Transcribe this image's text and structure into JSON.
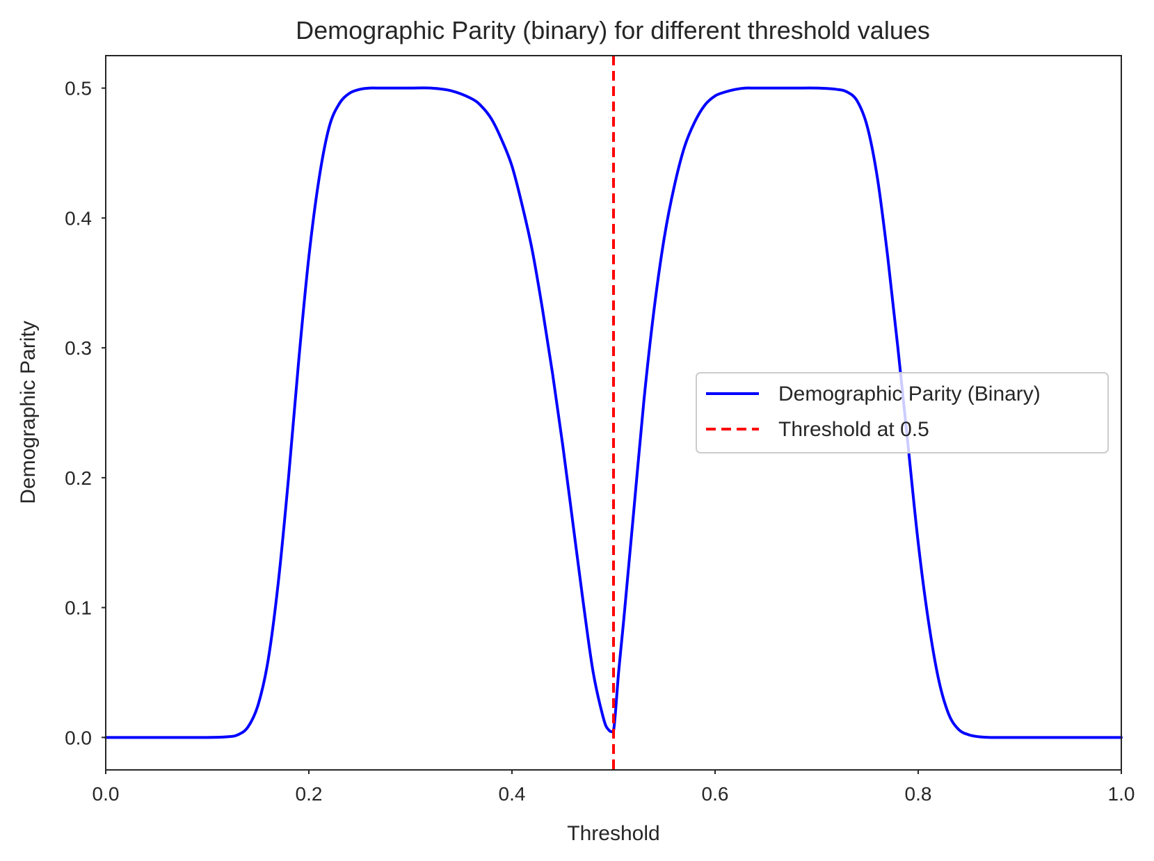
{
  "chart_data": {
    "type": "line",
    "title": "Demographic Parity (binary) for different threshold values",
    "xlabel": "Threshold",
    "ylabel": "Demographic Parity",
    "xlim": [
      0.0,
      1.0
    ],
    "ylim": [
      -0.025,
      0.525
    ],
    "xticks": [
      0.0,
      0.2,
      0.4,
      0.6,
      0.8,
      1.0
    ],
    "xtick_labels": [
      "0.0",
      "0.2",
      "0.4",
      "0.6",
      "0.8",
      "1.0"
    ],
    "yticks": [
      0.0,
      0.1,
      0.2,
      0.3,
      0.4,
      0.5
    ],
    "ytick_labels": [
      "0.0",
      "0.1",
      "0.2",
      "0.3",
      "0.4",
      "0.5"
    ],
    "grid": false,
    "legend_position": "center-right",
    "series": [
      {
        "name": "Demographic Parity (Binary)",
        "color": "#0000ff",
        "style": "solid",
        "x": [
          0.0,
          0.05,
          0.1,
          0.12,
          0.13,
          0.14,
          0.15,
          0.16,
          0.17,
          0.18,
          0.19,
          0.2,
          0.21,
          0.22,
          0.23,
          0.24,
          0.25,
          0.26,
          0.27,
          0.28,
          0.3,
          0.32,
          0.34,
          0.36,
          0.37,
          0.38,
          0.39,
          0.4,
          0.41,
          0.42,
          0.43,
          0.44,
          0.45,
          0.46,
          0.47,
          0.48,
          0.49,
          0.495,
          0.5,
          0.505,
          0.51,
          0.52,
          0.53,
          0.54,
          0.55,
          0.56,
          0.57,
          0.58,
          0.59,
          0.6,
          0.61,
          0.62,
          0.63,
          0.64,
          0.66,
          0.68,
          0.7,
          0.72,
          0.73,
          0.74,
          0.75,
          0.76,
          0.77,
          0.78,
          0.79,
          0.8,
          0.81,
          0.82,
          0.83,
          0.84,
          0.85,
          0.86,
          0.87,
          0.88,
          0.9,
          0.95,
          1.0
        ],
        "y": [
          0.0,
          0.0,
          0.0,
          0.0005,
          0.002,
          0.008,
          0.025,
          0.06,
          0.12,
          0.2,
          0.29,
          0.37,
          0.43,
          0.47,
          0.488,
          0.496,
          0.499,
          0.5,
          0.5,
          0.5,
          0.5,
          0.5,
          0.498,
          0.492,
          0.486,
          0.476,
          0.46,
          0.44,
          0.41,
          0.375,
          0.33,
          0.28,
          0.225,
          0.165,
          0.105,
          0.05,
          0.015,
          0.006,
          0.005,
          0.05,
          0.09,
          0.175,
          0.26,
          0.33,
          0.385,
          0.425,
          0.455,
          0.474,
          0.487,
          0.494,
          0.497,
          0.499,
          0.5,
          0.5,
          0.5,
          0.5,
          0.5,
          0.499,
          0.497,
          0.49,
          0.47,
          0.43,
          0.37,
          0.3,
          0.225,
          0.15,
          0.09,
          0.045,
          0.018,
          0.006,
          0.002,
          0.0005,
          0.0,
          0.0,
          0.0,
          0.0,
          0.0
        ]
      },
      {
        "name": "Threshold at 0.5",
        "color": "#ff0000",
        "style": "dashed",
        "type": "vline",
        "x": 0.5
      }
    ]
  }
}
